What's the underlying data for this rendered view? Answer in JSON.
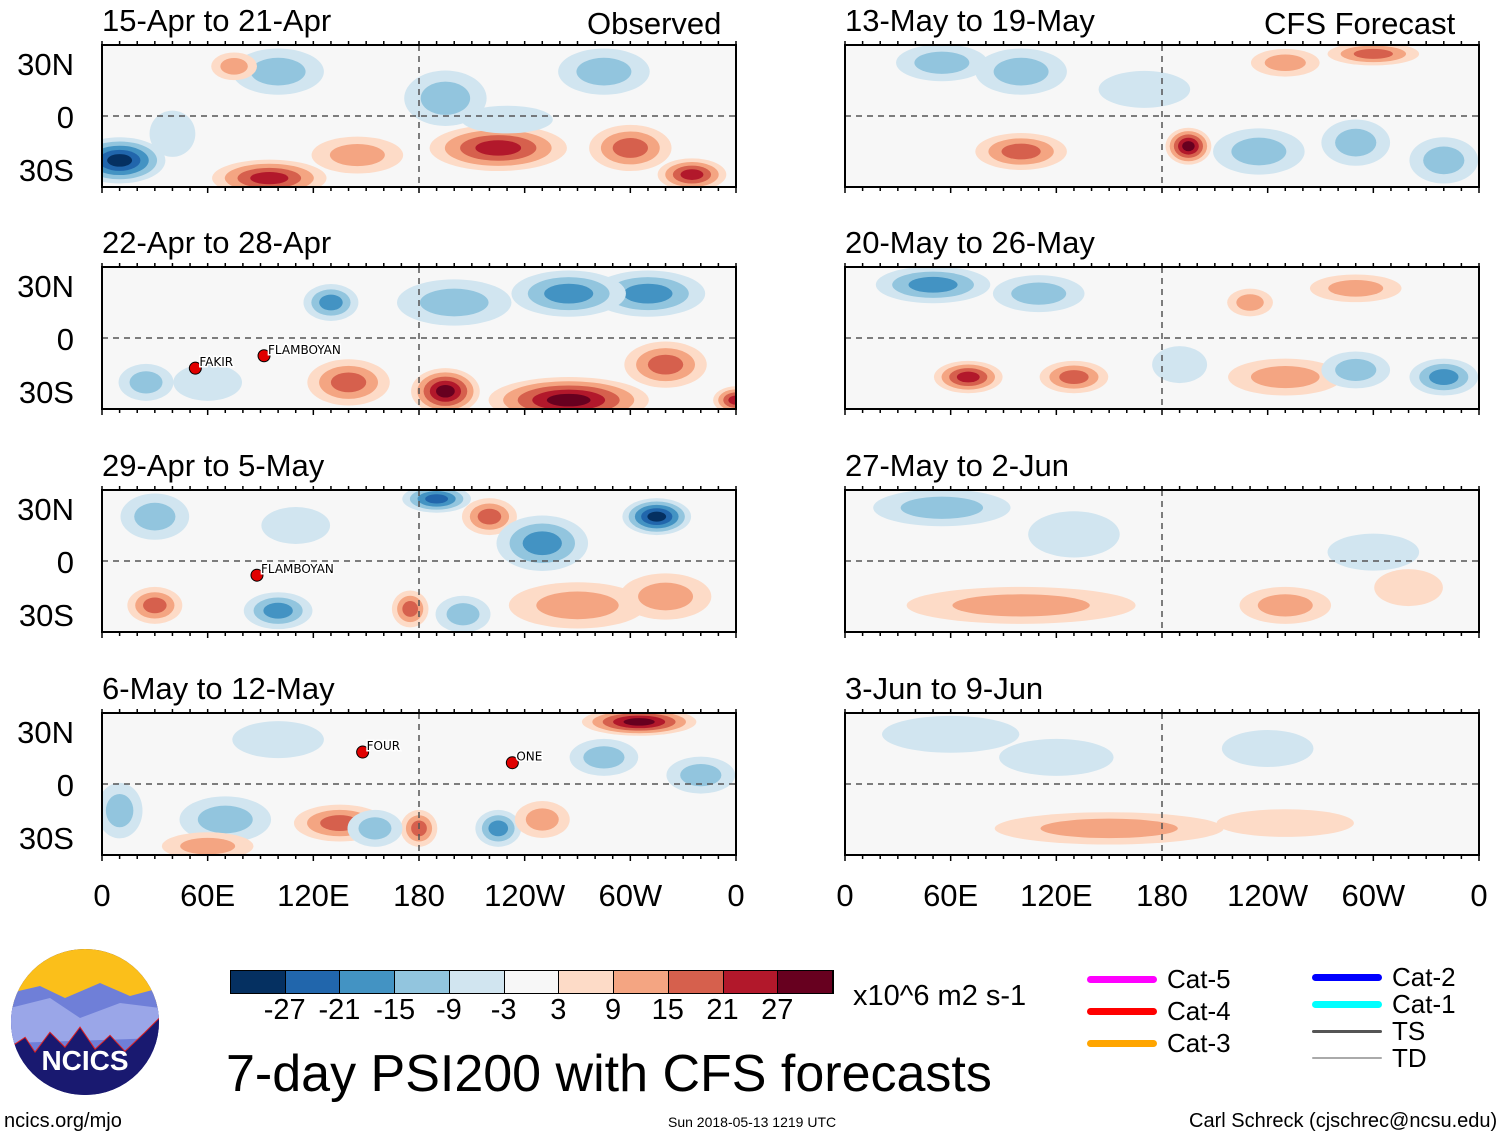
{
  "header": {
    "observed_label": "Observed",
    "forecast_label": "CFS Forecast"
  },
  "lat_labels": [
    "30N",
    "0",
    "30S"
  ],
  "lon_labels": [
    "0",
    "60E",
    "120E",
    "180",
    "120W",
    "60W",
    "0"
  ],
  "panels_observed": [
    {
      "title": "15-Apr to 21-Apr",
      "features": [
        [
          10,
          -25,
          -30,
          20,
          10
        ],
        [
          95,
          -35,
          24,
          25,
          8
        ],
        [
          145,
          -22,
          15,
          20,
          8
        ],
        [
          225,
          -18,
          22,
          30,
          10
        ],
        [
          300,
          -18,
          20,
          18,
          10
        ],
        [
          335,
          -33,
          22,
          15,
          7
        ],
        [
          100,
          25,
          -10,
          20,
          10
        ],
        [
          195,
          10,
          -12,
          18,
          12
        ],
        [
          285,
          25,
          -14,
          20,
          10
        ],
        [
          75,
          28,
          10,
          10,
          6
        ],
        [
          230,
          -2,
          -8,
          20,
          6
        ],
        [
          40,
          -10,
          -6,
          10,
          10
        ]
      ],
      "storms": []
    },
    {
      "title": "22-Apr to 28-Apr",
      "features": [
        [
          195,
          -30,
          30,
          15,
          10
        ],
        [
          265,
          -35,
          28,
          35,
          10
        ],
        [
          140,
          -25,
          16,
          18,
          10
        ],
        [
          320,
          -15,
          20,
          18,
          10
        ],
        [
          130,
          20,
          -16,
          12,
          8
        ],
        [
          310,
          25,
          -20,
          25,
          10
        ],
        [
          265,
          25,
          -18,
          25,
          10
        ],
        [
          200,
          20,
          -10,
          25,
          10
        ],
        [
          25,
          -25,
          -12,
          12,
          8
        ],
        [
          60,
          -25,
          -8,
          15,
          8
        ],
        [
          360,
          -35,
          22,
          10,
          6
        ]
      ],
      "storms": [
        {
          "name": "FAKIR",
          "lon": 53,
          "lat": -17
        },
        {
          "name": "FLAMBOYAN",
          "lon": 92,
          "lat": -10
        }
      ]
    },
    {
      "title": "29-Apr to 5-May",
      "features": [
        [
          190,
          35,
          -22,
          15,
          6
        ],
        [
          220,
          25,
          18,
          12,
          8
        ],
        [
          250,
          10,
          -18,
          20,
          12
        ],
        [
          315,
          25,
          -28,
          15,
          8
        ],
        [
          30,
          -25,
          20,
          12,
          8
        ],
        [
          100,
          -28,
          -20,
          15,
          8
        ],
        [
          175,
          -27,
          18,
          8,
          8
        ],
        [
          205,
          -30,
          -12,
          12,
          8
        ],
        [
          270,
          -25,
          14,
          30,
          10
        ],
        [
          320,
          -20,
          12,
          20,
          10
        ],
        [
          30,
          25,
          -10,
          15,
          10
        ],
        [
          110,
          20,
          -8,
          15,
          8
        ]
      ],
      "storms": [
        {
          "name": "FLAMBOYAN",
          "lon": 88,
          "lat": -8
        }
      ]
    },
    {
      "title": "6-May to 12-May",
      "features": [
        [
          305,
          35,
          30,
          25,
          6
        ],
        [
          180,
          -25,
          20,
          8,
          8
        ],
        [
          225,
          -25,
          -18,
          10,
          8
        ],
        [
          250,
          -20,
          14,
          12,
          8
        ],
        [
          135,
          -22,
          16,
          20,
          8
        ],
        [
          155,
          -25,
          -14,
          12,
          8
        ],
        [
          70,
          -20,
          -12,
          20,
          10
        ],
        [
          10,
          -15,
          -14,
          10,
          12
        ],
        [
          100,
          25,
          -8,
          20,
          8
        ],
        [
          285,
          15,
          -10,
          15,
          8
        ],
        [
          340,
          5,
          -10,
          15,
          8
        ],
        [
          60,
          -35,
          10,
          20,
          6
        ]
      ],
      "storms": [
        {
          "name": "FOUR",
          "lon": 148,
          "lat": 18
        },
        {
          "name": "ONE",
          "lon": 233,
          "lat": 12
        }
      ]
    }
  ],
  "panels_forecast": [
    {
      "title": "13-May to 19-May",
      "features": [
        [
          195,
          -17,
          28,
          10,
          8
        ],
        [
          100,
          -20,
          18,
          20,
          8
        ],
        [
          300,
          35,
          20,
          20,
          5
        ],
        [
          250,
          30,
          10,
          15,
          6
        ],
        [
          100,
          25,
          -14,
          20,
          10
        ],
        [
          55,
          30,
          -10,
          20,
          8
        ],
        [
          235,
          -20,
          -12,
          20,
          10
        ],
        [
          290,
          -15,
          -10,
          15,
          10
        ],
        [
          170,
          15,
          -8,
          20,
          8
        ],
        [
          340,
          -25,
          -10,
          15,
          10
        ]
      ],
      "storms": []
    },
    {
      "title": "20-May to 26-May",
      "features": [
        [
          70,
          -22,
          24,
          15,
          7
        ],
        [
          130,
          -22,
          20,
          15,
          7
        ],
        [
          250,
          -22,
          12,
          25,
          8
        ],
        [
          340,
          -22,
          -20,
          15,
          8
        ],
        [
          290,
          -18,
          -12,
          15,
          8
        ],
        [
          50,
          30,
          -16,
          25,
          8
        ],
        [
          110,
          25,
          -12,
          20,
          8
        ],
        [
          230,
          20,
          10,
          10,
          6
        ],
        [
          290,
          28,
          12,
          20,
          6
        ],
        [
          190,
          -15,
          -8,
          12,
          8
        ]
      ],
      "storms": []
    },
    {
      "title": "27-May to 2-Jun",
      "features": [
        [
          100,
          -25,
          10,
          50,
          8
        ],
        [
          250,
          -25,
          10,
          20,
          8
        ],
        [
          320,
          -15,
          8,
          15,
          8
        ],
        [
          55,
          30,
          -14,
          30,
          8
        ],
        [
          130,
          15,
          -6,
          20,
          10
        ],
        [
          300,
          5,
          -5,
          20,
          8
        ]
      ],
      "storms": []
    },
    {
      "title": "3-Jun to 9-Jun",
      "features": [
        [
          150,
          -25,
          10,
          50,
          7
        ],
        [
          250,
          -22,
          6,
          30,
          6
        ],
        [
          60,
          28,
          -8,
          30,
          8
        ],
        [
          120,
          15,
          -5,
          25,
          8
        ],
        [
          240,
          20,
          -5,
          20,
          8
        ]
      ],
      "storms": []
    }
  ],
  "colorbar": {
    "colors": [
      "#053061",
      "#2166ac",
      "#4393c3",
      "#92c5de",
      "#d1e5f0",
      "#f7f7f7",
      "#fddbc7",
      "#f4a582",
      "#d6604d",
      "#b2182b",
      "#67001f"
    ],
    "levels": [
      "-27",
      "-21",
      "-15",
      "-9",
      "-3",
      "3",
      "9",
      "15",
      "21",
      "27"
    ],
    "units": "x10^6 m2 s-1"
  },
  "legend": [
    {
      "label": "Cat-5",
      "color": "#ff00ff"
    },
    {
      "label": "Cat-4",
      "color": "#ff0000"
    },
    {
      "label": "Cat-3",
      "color": "#ffa500"
    },
    {
      "label": "Cat-2",
      "color": "#0000ff"
    },
    {
      "label": "Cat-1",
      "color": "#00ffff"
    },
    {
      "label": "TS",
      "color": "#555555"
    },
    {
      "label": "TD",
      "color": "#aaaaaa"
    }
  ],
  "title": "7-day PSI200 with CFS forecasts",
  "logo_text": "NCICS",
  "footer": {
    "url": "ncics.org/mjo",
    "timestamp": "Sun 2018-05-13 1219 UTC",
    "credit": "Carl Schreck (cjschrec@ncsu.edu)"
  }
}
